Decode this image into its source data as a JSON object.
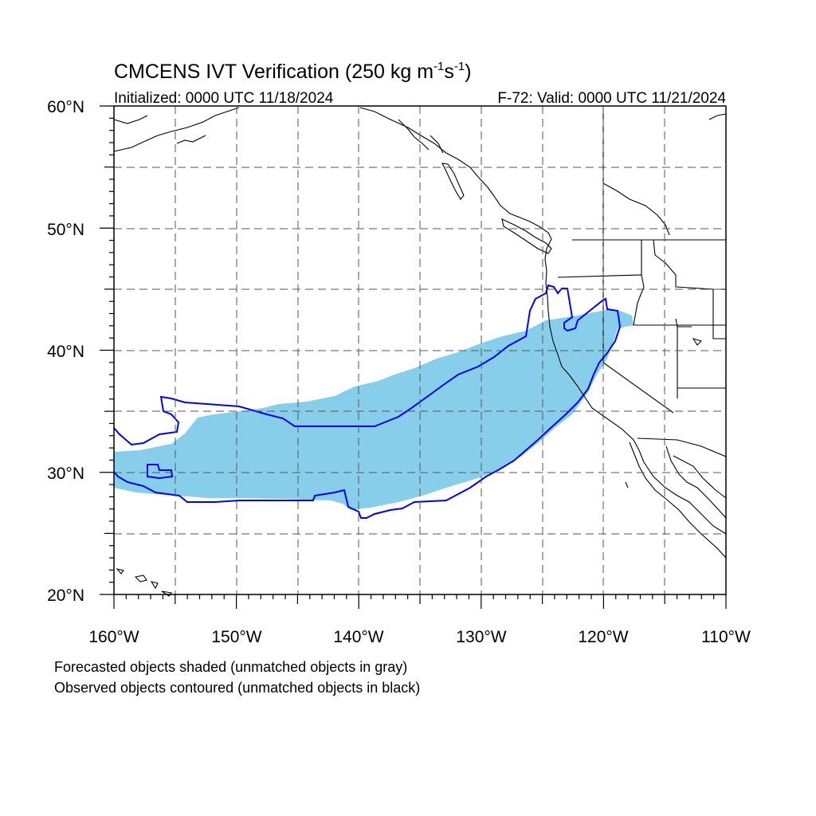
{
  "title": {
    "prefix": "CMCENS IVT Verification (250 kg m",
    "sup1": "-1",
    "mid": "s",
    "sup2": "-1",
    "suffix": ")"
  },
  "initialized_text": "Initialized: 0000 UTC 11/18/2024",
  "valid_text": "F-72: Valid: 0000 UTC 11/21/2024",
  "map": {
    "lon_range": [
      -160,
      -110
    ],
    "lat_range": [
      20,
      60
    ],
    "x_tick_labels": [
      "160°W",
      "150°W",
      "140°W",
      "130°W",
      "120°W",
      "110°W"
    ],
    "y_tick_labels": [
      "60°N",
      "50°N",
      "40°N",
      "30°N",
      "20°N"
    ],
    "gridlines": "dashed gray every 5 degrees",
    "forecast_object_color": "#87ceeb",
    "observed_contour_color": "#0000ff",
    "coastline_color": "#000000"
  },
  "legend": {
    "line1": "Forecasted objects shaded (unmatched objects in gray)",
    "line2": "Observed objects contoured (unmatched objects in black)"
  }
}
